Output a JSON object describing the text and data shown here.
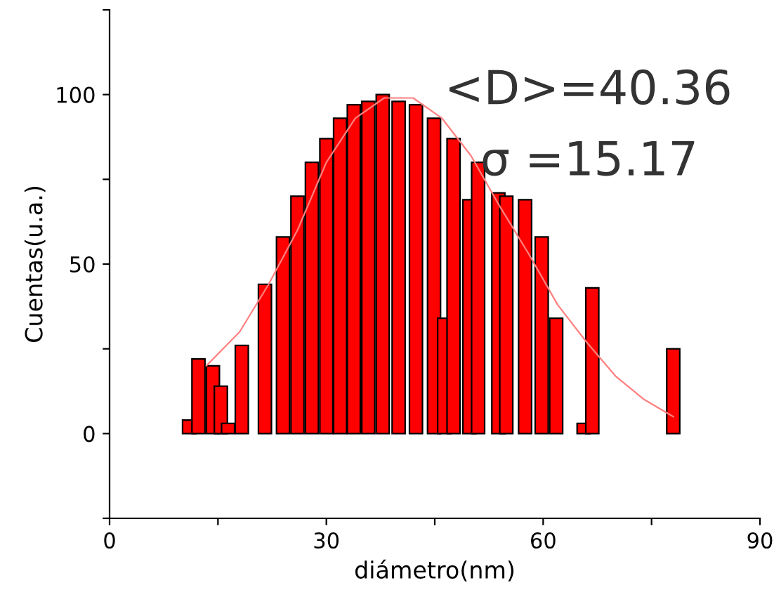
{
  "chart_data": {
    "type": "bar",
    "xlabel": "diámetro(nm)",
    "ylabel": "Cuentas(u.a.)",
    "xlim": [
      0,
      90
    ],
    "ylim": [
      -25,
      125
    ],
    "xticks": [
      0,
      {
        "value": 15,
        "label": null
      },
      30,
      {
        "value": 45,
        "label": null
      },
      60,
      {
        "value": 75,
        "label": null
      },
      90
    ],
    "yticks": [
      {
        "value": -25,
        "label": null
      },
      0,
      {
        "value": 25,
        "label": null
      },
      50,
      {
        "value": 75,
        "label": null
      },
      100,
      {
        "value": 125,
        "label": null
      }
    ],
    "grid": false,
    "annotations": [
      "<D>=40.36",
      "σ =15.17"
    ],
    "series": [
      {
        "color": "#ff0000",
        "x": [
          11.0,
          12.3,
          14.3,
          15.4,
          16.4,
          18.3,
          21.5,
          24.0,
          26.0,
          28.0,
          30.0,
          31.9,
          33.8,
          35.8,
          37.8,
          40.0,
          42.4,
          44.9,
          46.3,
          47.6,
          49.8,
          51.0,
          53.8,
          54.9,
          57.5,
          59.8,
          61.8,
          65.6,
          66.8,
          78.0
        ],
        "values": [
          4,
          22,
          20,
          14,
          3,
          26,
          44,
          58,
          70,
          80,
          87,
          93,
          97,
          98,
          100,
          98,
          97,
          93,
          34,
          87,
          69,
          80,
          71,
          70,
          69,
          58,
          34,
          3,
          43,
          25
        ]
      },
      {
        "type": "line",
        "color": "#ff8080",
        "x": [
          13.4,
          18,
          22,
          26,
          30,
          34,
          38,
          42,
          46,
          50,
          54,
          58,
          62,
          66,
          70,
          74,
          78
        ],
        "values": [
          20,
          30,
          44,
          60,
          80,
          93,
          99,
          99,
          93,
          82,
          67,
          53,
          38,
          27,
          17,
          10,
          5
        ]
      }
    ]
  }
}
